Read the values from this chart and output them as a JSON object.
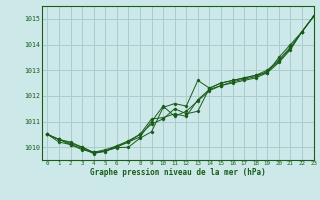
{
  "title": "Graphe pression niveau de la mer (hPa)",
  "bg_color": "#cce8e8",
  "grid_color": "#aacccc",
  "line_color": "#1a5c1a",
  "xlim": [
    -0.5,
    23
  ],
  "ylim": [
    1009.5,
    1015.5
  ],
  "yticks": [
    1010,
    1011,
    1012,
    1013,
    1014,
    1015
  ],
  "xticks": [
    0,
    1,
    2,
    3,
    4,
    5,
    6,
    7,
    8,
    9,
    10,
    11,
    12,
    13,
    14,
    15,
    16,
    17,
    18,
    19,
    20,
    21,
    22,
    23
  ],
  "series": [
    [
      1010.5,
      1010.3,
      1010.2,
      1010.0,
      1009.8,
      1009.9,
      1010.05,
      1010.2,
      1010.5,
      1010.9,
      1011.1,
      1011.5,
      1011.3,
      1011.4,
      1012.3,
      1012.5,
      1012.6,
      1012.7,
      1012.8,
      1013.0,
      1013.4,
      1013.9,
      1014.5,
      1015.1
    ],
    [
      1010.5,
      1010.3,
      1010.1,
      1009.9,
      1009.8,
      1009.85,
      1010.0,
      1010.2,
      1010.4,
      1011.0,
      1011.6,
      1011.2,
      1011.4,
      1011.8,
      1012.2,
      1012.4,
      1012.5,
      1012.6,
      1012.7,
      1012.9,
      1013.3,
      1013.8,
      1014.5,
      1015.1
    ],
    [
      1010.5,
      1010.3,
      1010.15,
      1010.0,
      1009.78,
      1009.83,
      1010.05,
      1010.25,
      1010.5,
      1011.1,
      1011.15,
      1011.3,
      1011.2,
      1011.85,
      1012.25,
      1012.4,
      1012.55,
      1012.65,
      1012.75,
      1012.95,
      1013.35,
      1013.85,
      1014.5,
      1015.1
    ],
    [
      1010.5,
      1010.2,
      1010.1,
      1009.95,
      1009.75,
      1009.85,
      1009.98,
      1010.0,
      1010.35,
      1010.6,
      1011.55,
      1011.7,
      1011.6,
      1012.6,
      1012.3,
      1012.5,
      1012.6,
      1012.7,
      1012.8,
      1012.9,
      1013.5,
      1014.0,
      1014.5,
      1015.1
    ]
  ]
}
